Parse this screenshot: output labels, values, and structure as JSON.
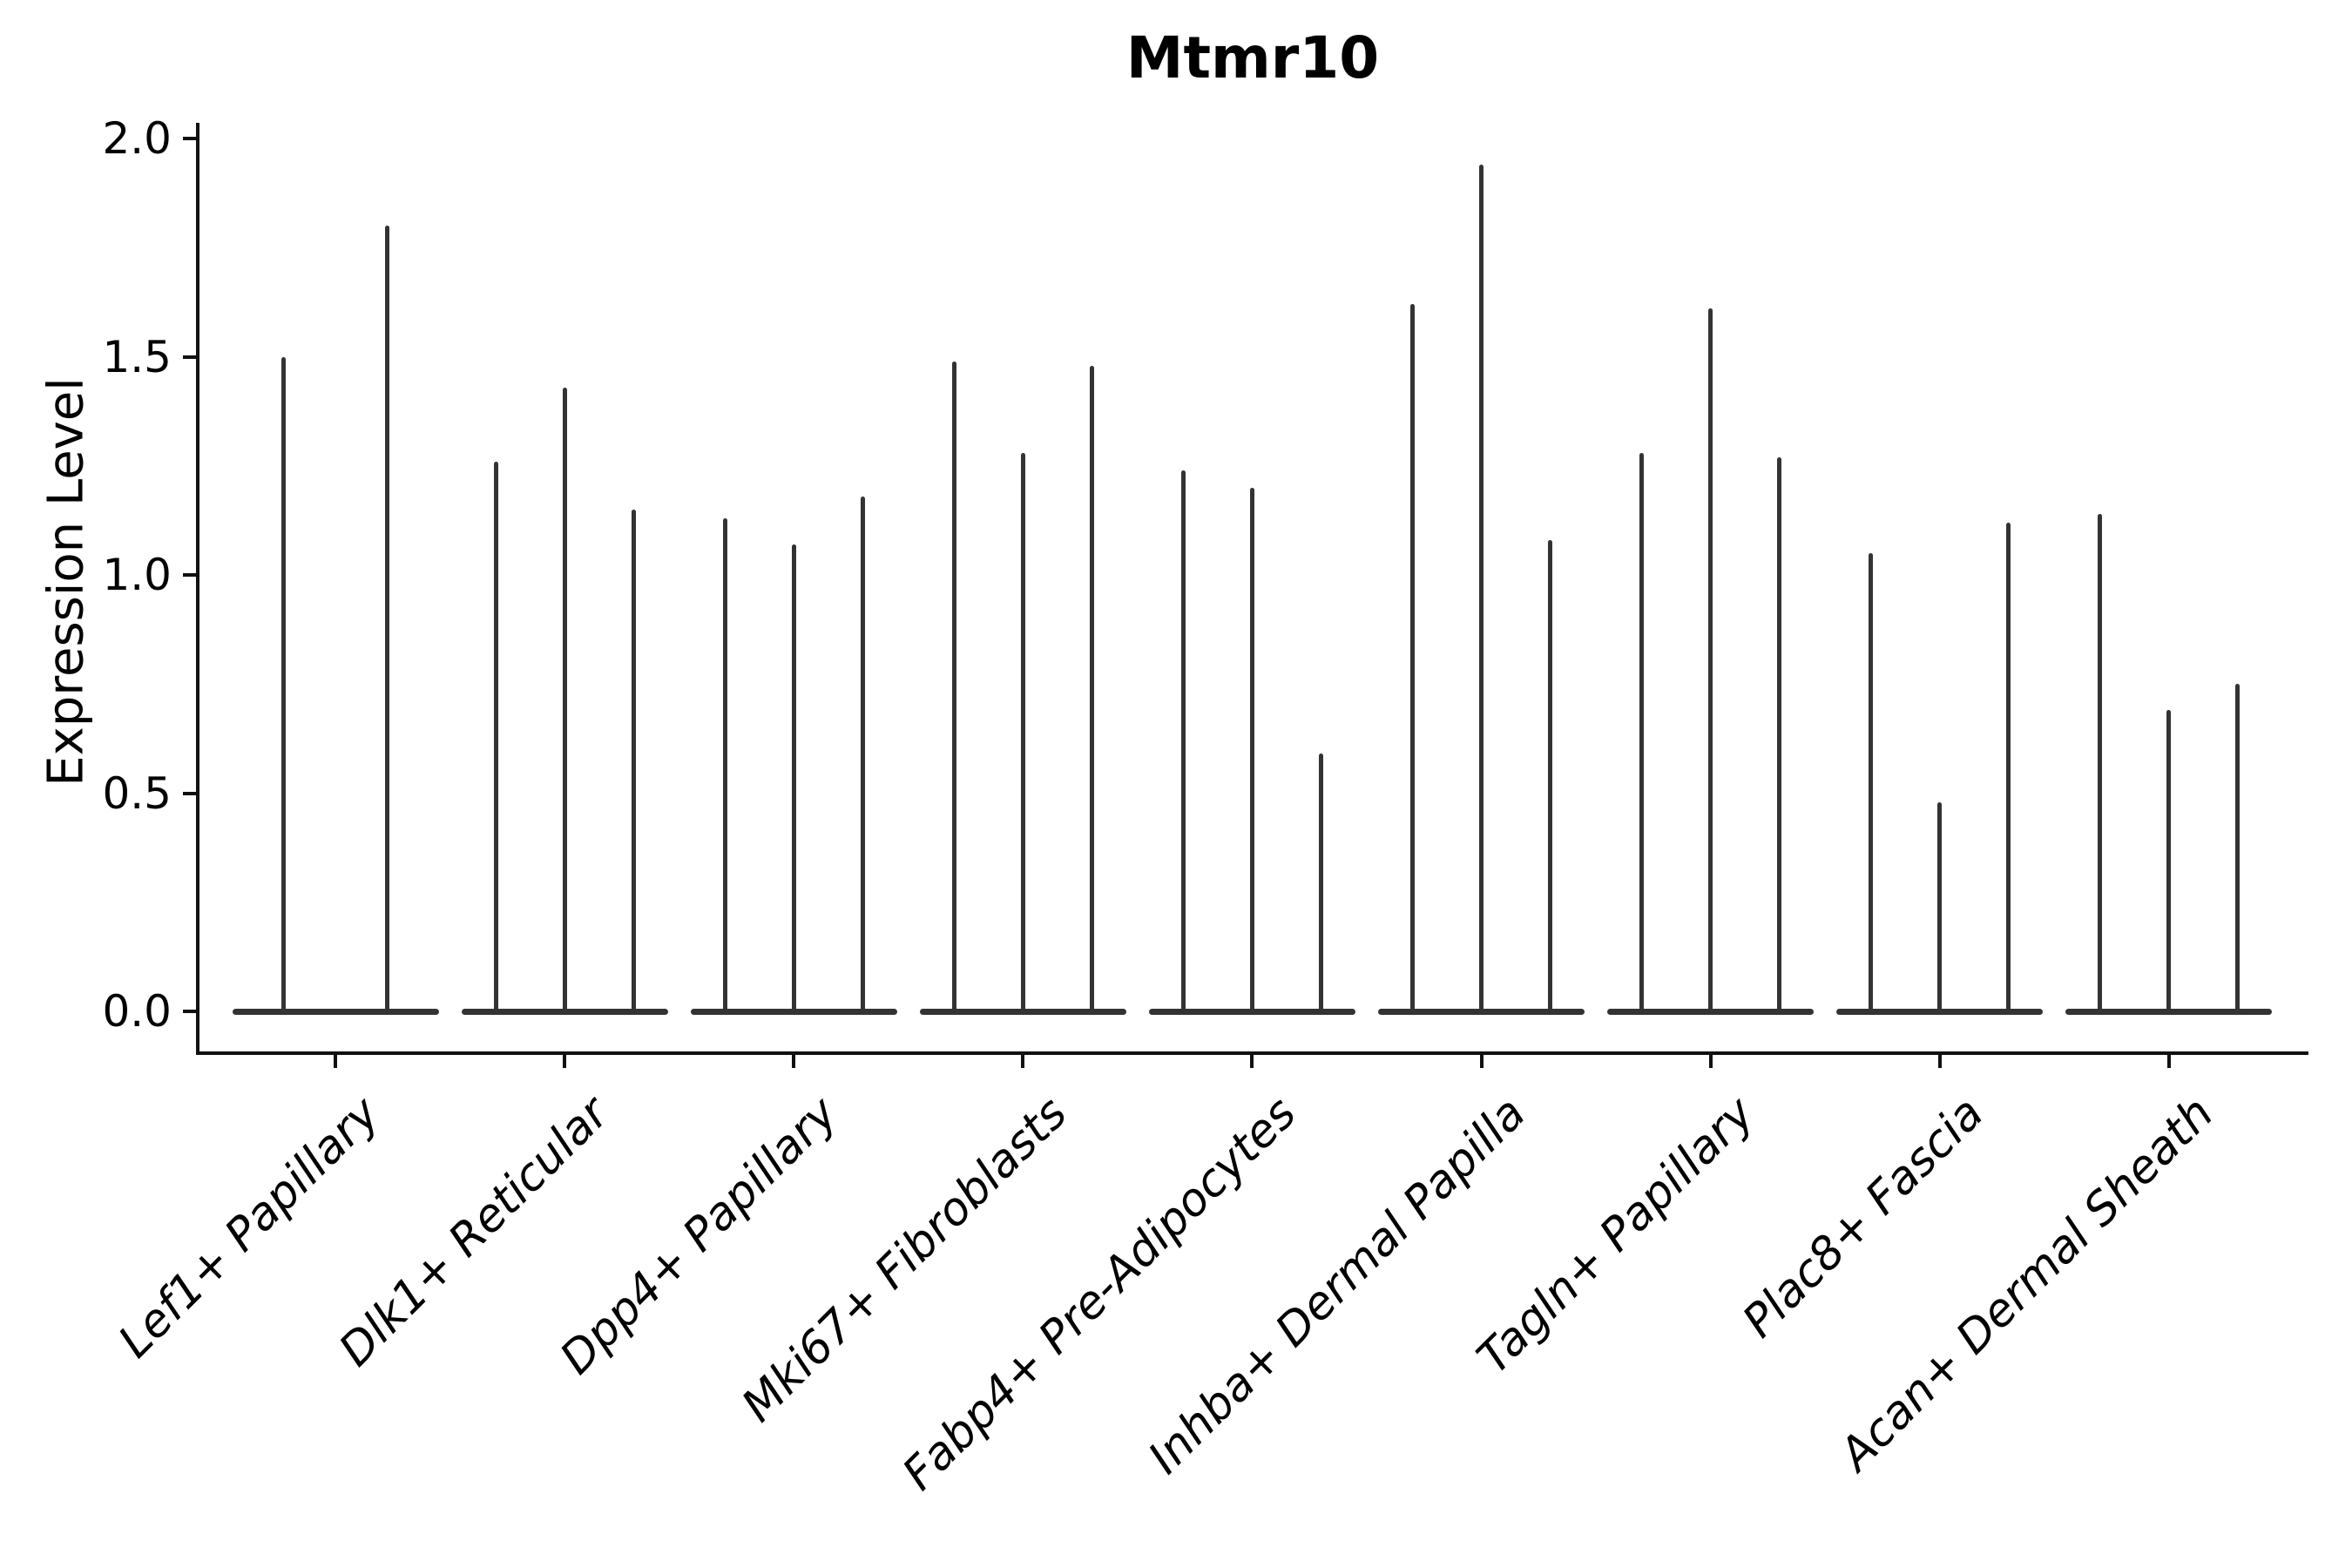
{
  "title": "Mtmr10",
  "y_axis": {
    "label": "Expression Level",
    "tick_labels": [
      "0.0",
      "0.5",
      "1.0",
      "1.5",
      "2.0"
    ]
  },
  "chart_data": {
    "type": "violin",
    "title": "Mtmr10",
    "ylabel": "Expression Level",
    "xlabel": "",
    "ylim": [
      0.0,
      2.0
    ],
    "yticks": [
      0.0,
      0.5,
      1.0,
      1.5,
      2.0
    ],
    "grid": false,
    "legend": "none",
    "description": "Single-cell expression violin plot; each category shows a flat density base at 0 with thin vertical density spikes whose tops mark the maximum expression values of expressing cells.",
    "categories": [
      "Lef1+ Papillary",
      "Dlk1+ Reticular",
      "Dpp4+ Papillary",
      "Mki67+ Fibroblasts",
      "Fabp4+ Pre-Adipocytes",
      "Inhba+ Dermal Papilla",
      "Tagln+ Papillary",
      "Plac8+ Fascia",
      "Acan+ Dermal Sheath"
    ],
    "violins": [
      {
        "category": "Lef1+ Papillary",
        "spike_maxima": [
          1.5,
          1.8
        ]
      },
      {
        "category": "Dlk1+ Reticular",
        "spike_maxima": [
          1.26,
          1.43,
          1.15
        ]
      },
      {
        "category": "Dpp4+ Papillary",
        "spike_maxima": [
          1.13,
          1.07,
          1.18
        ]
      },
      {
        "category": "Mki67+ Fibroblasts",
        "spike_maxima": [
          1.49,
          1.28,
          1.48
        ]
      },
      {
        "category": "Fabp4+ Pre-Adipocytes",
        "spike_maxima": [
          1.24,
          1.2,
          0.59
        ]
      },
      {
        "category": "Inhba+ Dermal Papilla",
        "spike_maxima": [
          1.62,
          1.94,
          1.08
        ]
      },
      {
        "category": "Tagln+ Papillary",
        "spike_maxima": [
          1.28,
          1.61,
          1.27
        ]
      },
      {
        "category": "Plac8+ Fascia",
        "spike_maxima": [
          1.05,
          0.48,
          1.12
        ]
      },
      {
        "category": "Acan+ Dermal Sheath",
        "spike_maxima": [
          1.14,
          0.69,
          0.75
        ]
      }
    ],
    "baseline_value": 0.0,
    "colors": {
      "violin": "#333333",
      "axis": "#111111",
      "text": "#000000",
      "background": "#ffffff"
    }
  }
}
